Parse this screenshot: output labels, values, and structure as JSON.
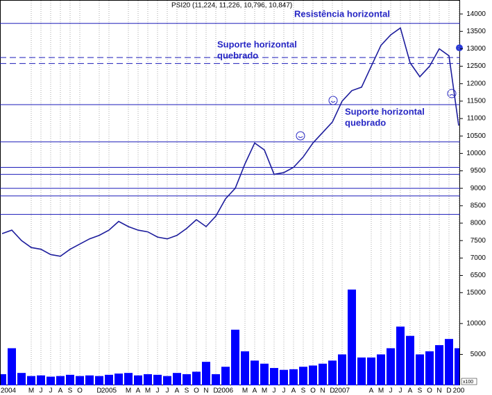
{
  "chart_data": [
    {
      "type": "line",
      "title": "PSI20 (11,224, 11,226, 10,796, 10,847)",
      "x": [
        "2004-02",
        "2004-03",
        "2004-04",
        "2004-05",
        "2004-06",
        "2004-07",
        "2004-08",
        "2004-09",
        "2004-10",
        "2004-11",
        "2004-12",
        "2005-01",
        "2005-02",
        "2005-03",
        "2005-04",
        "2005-05",
        "2005-06",
        "2005-07",
        "2005-08",
        "2005-09",
        "2005-10",
        "2005-11",
        "2005-12",
        "2006-01",
        "2006-02",
        "2006-03",
        "2006-04",
        "2006-05",
        "2006-06",
        "2006-07",
        "2006-08",
        "2006-09",
        "2006-10",
        "2006-11",
        "2006-12",
        "2007-01",
        "2007-02",
        "2007-03",
        "2007-04",
        "2007-05",
        "2007-06",
        "2007-07",
        "2007-08",
        "2007-09",
        "2007-10",
        "2007-11",
        "2007-12",
        "2008-01"
      ],
      "values": [
        7700,
        7800,
        7500,
        7300,
        7250,
        7100,
        7050,
        7250,
        7400,
        7550,
        7650,
        7800,
        8050,
        7900,
        7800,
        7750,
        7600,
        7550,
        7650,
        7850,
        8100,
        7900,
        8200,
        8700,
        9000,
        9700,
        10300,
        10100,
        9400,
        9450,
        9600,
        9900,
        10300,
        10600,
        10900,
        11500,
        11800,
        11900,
        12500,
        13100,
        13400,
        13600,
        12600,
        12200,
        12500,
        13000,
        12800,
        10800
      ],
      "color": "#1c1c9c",
      "xlim": [
        "2004-02",
        "2008-01"
      ],
      "ylim": [
        6450,
        14400
      ],
      "yticks": [
        6500,
        7000,
        7500,
        8000,
        8500,
        9000,
        9500,
        10000,
        10500,
        11000,
        11500,
        12000,
        12500,
        13000,
        13500,
        14000
      ],
      "hlines": [
        {
          "value": 13730,
          "style": "solid"
        },
        {
          "value": 12750,
          "style": "dashed"
        },
        {
          "value": 12580,
          "style": "dashed"
        },
        {
          "value": 11400,
          "style": "solid"
        },
        {
          "value": 10330,
          "style": "solid"
        },
        {
          "value": 9600,
          "style": "solid"
        },
        {
          "value": 9400,
          "style": "solid"
        },
        {
          "value": 9000,
          "style": "solid"
        },
        {
          "value": 8780,
          "style": "solid"
        },
        {
          "value": 8250,
          "style": "solid"
        }
      ],
      "hline_color": "#1a1ab8",
      "annotations": [
        [
          "Resistência horizontal"
        ],
        [
          "Suporte horizontal",
          "quebrado"
        ],
        [
          "Suporte horizontal",
          "quebrado"
        ]
      ]
    },
    {
      "type": "bar",
      "x": [
        "2004-02",
        "2004-03",
        "2004-04",
        "2004-05",
        "2004-06",
        "2004-07",
        "2004-08",
        "2004-09",
        "2004-10",
        "2004-11",
        "2004-12",
        "2005-01",
        "2005-02",
        "2005-03",
        "2005-04",
        "2005-05",
        "2005-06",
        "2005-07",
        "2005-08",
        "2005-09",
        "2005-10",
        "2005-11",
        "2005-12",
        "2006-01",
        "2006-02",
        "2006-03",
        "2006-04",
        "2006-05",
        "2006-06",
        "2006-07",
        "2006-08",
        "2006-09",
        "2006-10",
        "2006-11",
        "2006-12",
        "2007-01",
        "2007-02",
        "2007-03",
        "2007-04",
        "2007-05",
        "2007-06",
        "2007-07",
        "2007-08",
        "2007-09",
        "2007-10",
        "2007-11",
        "2007-12",
        "2008-01"
      ],
      "values": [
        1800,
        6000,
        2000,
        1500,
        1600,
        1400,
        1500,
        1700,
        1500,
        1600,
        1500,
        1700,
        1900,
        2000,
        1600,
        1800,
        1700,
        1500,
        2000,
        1800,
        2200,
        3800,
        1800,
        3000,
        9000,
        5500,
        4000,
        3500,
        2800,
        2500,
        2600,
        3000,
        3200,
        3500,
        4000,
        5000,
        15500,
        4500,
        4500,
        5000,
        6000,
        9500,
        8000,
        5000,
        5500,
        6500,
        7500,
        6000
      ],
      "color": "#0000ff",
      "xlim": [
        "2004-02",
        "2008-01"
      ],
      "ylim": [
        0,
        17500
      ],
      "yticks": [
        5000,
        10000,
        15000
      ],
      "unit_label": "x100",
      "xticks": [
        {
          "value": "2004-01",
          "label": "2004"
        },
        {
          "value": "2004-05",
          "label": "M"
        },
        {
          "value": "2004-06",
          "label": "J"
        },
        {
          "value": "2004-07",
          "label": "J"
        },
        {
          "value": "2004-08",
          "label": "A"
        },
        {
          "value": "2004-09",
          "label": "S"
        },
        {
          "value": "2004-10",
          "label": "O"
        },
        {
          "value": "2004-12",
          "label": "D"
        },
        {
          "value": "2005-01",
          "label": "2005"
        },
        {
          "value": "2005-03",
          "label": "M"
        },
        {
          "value": "2005-04",
          "label": "A"
        },
        {
          "value": "2005-05",
          "label": "M"
        },
        {
          "value": "2005-06",
          "label": "J"
        },
        {
          "value": "2005-07",
          "label": "J"
        },
        {
          "value": "2005-08",
          "label": "A"
        },
        {
          "value": "2005-09",
          "label": "S"
        },
        {
          "value": "2005-10",
          "label": "O"
        },
        {
          "value": "2005-11",
          "label": "N"
        },
        {
          "value": "2005-12",
          "label": "D"
        },
        {
          "value": "2006-01",
          "label": "2006"
        },
        {
          "value": "2006-03",
          "label": "M"
        },
        {
          "value": "2006-04",
          "label": "A"
        },
        {
          "value": "2006-05",
          "label": "M"
        },
        {
          "value": "2006-06",
          "label": "J"
        },
        {
          "value": "2006-07",
          "label": "J"
        },
        {
          "value": "2006-08",
          "label": "A"
        },
        {
          "value": "2006-09",
          "label": "S"
        },
        {
          "value": "2006-10",
          "label": "O"
        },
        {
          "value": "2006-11",
          "label": "N"
        },
        {
          "value": "2006-12",
          "label": "D"
        },
        {
          "value": "2007-01",
          "label": "2007"
        },
        {
          "value": "2007-04",
          "label": "A"
        },
        {
          "value": "2007-05",
          "label": "M"
        },
        {
          "value": "2007-06",
          "label": "J"
        },
        {
          "value": "2007-07",
          "label": "J"
        },
        {
          "value": "2007-08",
          "label": "A"
        },
        {
          "value": "2007-09",
          "label": "S"
        },
        {
          "value": "2007-10",
          "label": "O"
        },
        {
          "value": "2007-11",
          "label": "N"
        },
        {
          "value": "2007-12",
          "label": "D"
        },
        {
          "value": "2008-01",
          "label": "200"
        }
      ]
    }
  ]
}
